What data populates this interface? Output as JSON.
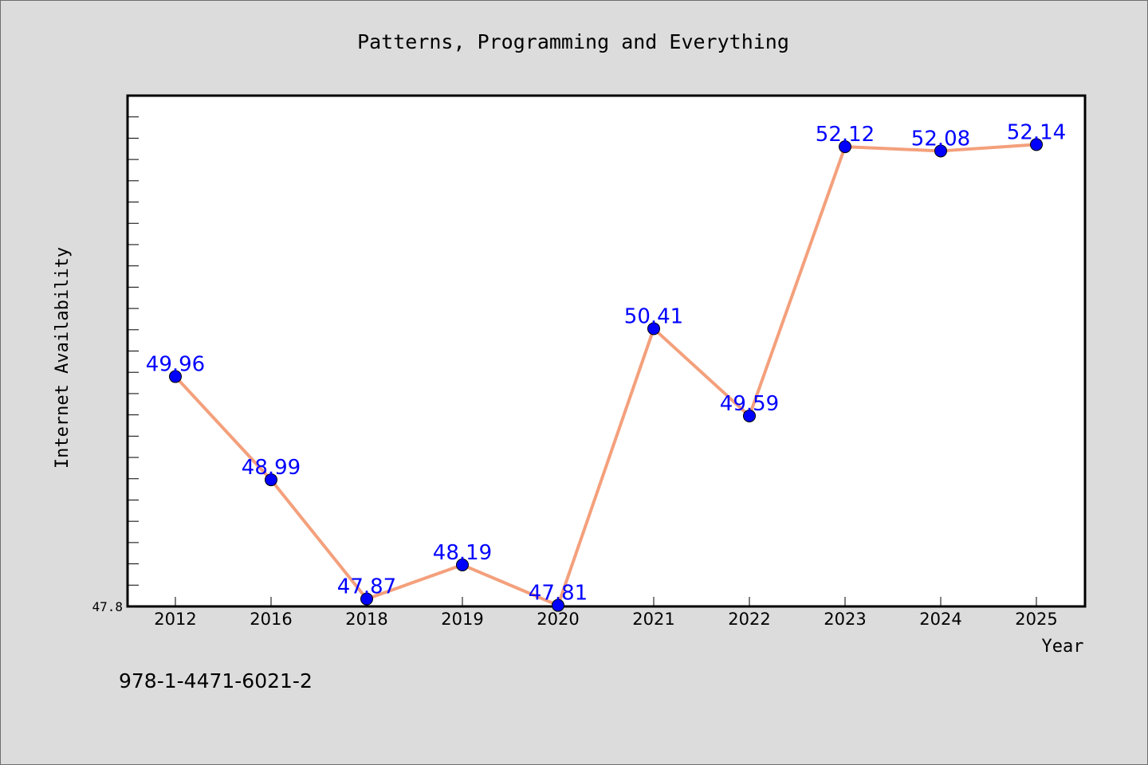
{
  "chart_data": {
    "type": "line",
    "title": "Patterns, Programming and Everything",
    "xlabel": "Year",
    "ylabel": "Internet Availability",
    "categories": [
      "2012",
      "2016",
      "2018",
      "2019",
      "2020",
      "2021",
      "2022",
      "2023",
      "2024",
      "2025"
    ],
    "values": [
      49.96,
      48.99,
      47.87,
      48.19,
      47.81,
      50.41,
      49.59,
      52.12,
      52.08,
      52.14
    ],
    "data_labels": [
      "49.96",
      "48.99",
      "47.87",
      "48.19",
      "47.81",
      "50.41",
      "49.59",
      "52.12",
      "52.08",
      "52.14"
    ],
    "ylim": [
      47.8,
      52.6
    ],
    "y_tick_labels": [
      "47.8"
    ],
    "grid": false,
    "line_color": "#f4a07c",
    "marker_color": "#0000ff",
    "label_color": "#0000ff"
  },
  "footer_text": "978-1-4471-6021-2"
}
